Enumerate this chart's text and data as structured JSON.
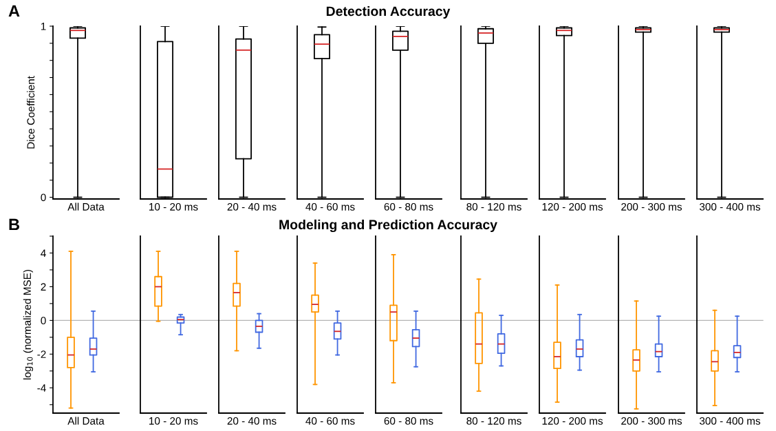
{
  "chart_data": [
    {
      "type": "box",
      "title": "Detection Accuracy",
      "ylabel": "Dice Coefficient",
      "annotations": [
        "A"
      ],
      "categories": [
        "All Data",
        "10 - 20 ms",
        "20 - 40 ms",
        "40 - 60 ms",
        "60 - 80 ms",
        "80 - 120 ms",
        "120 - 200 ms",
        "200 - 300 ms",
        "300 - 400 ms"
      ],
      "boxes": [
        {
          "low": 0,
          "q1": 0.93,
          "median": 0.975,
          "q3": 0.99,
          "high": 1
        },
        {
          "low": 0,
          "q1": 0,
          "median": 0.165,
          "q3": 0.91,
          "high": 1
        },
        {
          "low": 0,
          "q1": 0.225,
          "median": 0.86,
          "q3": 0.925,
          "high": 1
        },
        {
          "low": 0,
          "q1": 0.81,
          "median": 0.895,
          "q3": 0.95,
          "high": 0.995
        },
        {
          "low": 0,
          "q1": 0.86,
          "median": 0.94,
          "q3": 0.97,
          "high": 1
        },
        {
          "low": 0,
          "q1": 0.9,
          "median": 0.96,
          "q3": 0.985,
          "high": 1
        },
        {
          "low": 0,
          "q1": 0.945,
          "median": 0.975,
          "q3": 0.99,
          "high": 1
        },
        {
          "low": 0,
          "q1": 0.965,
          "median": 0.98,
          "q3": 0.99,
          "high": 1
        },
        {
          "low": 0,
          "q1": 0.965,
          "median": 0.98,
          "q3": 0.99,
          "high": 1
        }
      ],
      "ylim": [
        -0.01,
        1
      ],
      "yticks": [
        {
          "value": 0,
          "label": "0"
        },
        {
          "value": 0.1,
          "label": null
        },
        {
          "value": 0.2,
          "label": null
        },
        {
          "value": 0.3,
          "label": null
        },
        {
          "value": 0.4,
          "label": null
        },
        {
          "value": 0.5,
          "label": null
        },
        {
          "value": 0.6,
          "label": null
        },
        {
          "value": 0.7,
          "label": null
        },
        {
          "value": 0.8,
          "label": null
        },
        {
          "value": 0.9,
          "label": null
        },
        {
          "value": 1,
          "label": "1"
        }
      ]
    },
    {
      "type": "box",
      "title": "Modeling and Prediction Accuracy",
      "ylabel": "log$_{10}$ (normalized MSE)",
      "annotations": [
        "B"
      ],
      "categories": [
        "All Data",
        "10 - 20 ms",
        "20 - 40 ms",
        "40 - 60 ms",
        "60 - 80 ms",
        "80 - 120 ms",
        "120 - 200 ms",
        "200 - 300 ms",
        "300 - 400 ms"
      ],
      "series": [
        {
          "color": "#ff9500",
          "boxes": [
            {
              "low": -5.2,
              "q1": -2.8,
              "median": -2.05,
              "q3": -1.0,
              "high": 4.1
            },
            {
              "low": -0.05,
              "q1": 0.85,
              "median": 2.0,
              "q3": 2.6,
              "high": 4.1
            },
            {
              "low": -1.8,
              "q1": 0.85,
              "median": 1.65,
              "q3": 2.2,
              "high": 4.1
            },
            {
              "low": -3.8,
              "q1": 0.5,
              "median": 0.95,
              "q3": 1.5,
              "high": 3.4
            },
            {
              "low": -3.7,
              "q1": -1.2,
              "median": 0.5,
              "q3": 0.9,
              "high": 3.9
            },
            {
              "low": -4.2,
              "q1": -2.55,
              "median": -1.4,
              "q3": 0.45,
              "high": 2.45
            },
            {
              "low": -4.85,
              "q1": -2.85,
              "median": -2.15,
              "q3": -1.3,
              "high": 2.1
            },
            {
              "low": -5.25,
              "q1": -3.0,
              "median": -2.35,
              "q3": -1.75,
              "high": 1.15
            },
            {
              "low": -5.05,
              "q1": -3.0,
              "median": -2.45,
              "q3": -1.8,
              "high": 0.6
            }
          ]
        },
        {
          "color": "#4169e1",
          "boxes": [
            {
              "low": -3.05,
              "q1": -2.05,
              "median": -1.7,
              "q3": -1.05,
              "high": 0.55
            },
            {
              "low": -0.85,
              "q1": -0.15,
              "median": 0.05,
              "q3": 0.2,
              "high": 0.35
            },
            {
              "low": -1.65,
              "q1": -0.7,
              "median": -0.35,
              "q3": 0.0,
              "high": 0.4
            },
            {
              "low": -2.05,
              "q1": -1.1,
              "median": -0.65,
              "q3": -0.15,
              "high": 0.55
            },
            {
              "low": -2.75,
              "q1": -1.55,
              "median": -1.05,
              "q3": -0.55,
              "high": 0.55
            },
            {
              "low": -2.7,
              "q1": -1.95,
              "median": -1.4,
              "q3": -0.8,
              "high": 0.3
            },
            {
              "low": -2.95,
              "q1": -2.15,
              "median": -1.7,
              "q3": -1.15,
              "high": 0.35
            },
            {
              "low": -3.05,
              "q1": -2.15,
              "median": -1.85,
              "q3": -1.4,
              "high": 0.25
            },
            {
              "low": -3.05,
              "q1": -2.2,
              "median": -1.9,
              "q3": -1.5,
              "high": 0.25
            }
          ]
        }
      ],
      "ylim": [
        -5.5,
        5
      ],
      "yticks": [
        {
          "value": -5,
          "label": null
        },
        {
          "value": -4,
          "label": "-4"
        },
        {
          "value": -3,
          "label": null
        },
        {
          "value": -2,
          "label": "-2"
        },
        {
          "value": -1,
          "label": null
        },
        {
          "value": 0,
          "label": "0"
        },
        {
          "value": 1,
          "label": null
        },
        {
          "value": 2,
          "label": "2"
        },
        {
          "value": 3,
          "label": null
        },
        {
          "value": 4,
          "label": "4"
        },
        {
          "value": 5,
          "label": null
        }
      ],
      "ref_lines": [
        {
          "axis": "y",
          "value": 0,
          "color": "#b4b4b4"
        }
      ]
    }
  ]
}
